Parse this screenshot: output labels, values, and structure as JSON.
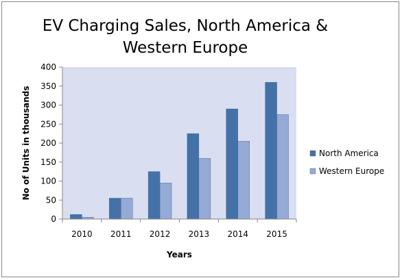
{
  "chart_data": {
    "type": "bar",
    "title": "EV Charging Sales, North America & Western Europe",
    "xlabel": "Years",
    "ylabel": "No of Units in thousands",
    "categories": [
      "2010",
      "2011",
      "2012",
      "2013",
      "2014",
      "2015"
    ],
    "series": [
      {
        "name": "North America",
        "values": [
          12,
          55,
          125,
          225,
          290,
          360
        ],
        "color": "#4472a8"
      },
      {
        "name": "Western Europe",
        "values": [
          5,
          55,
          95,
          160,
          205,
          275
        ],
        "color": "#96aad6"
      }
    ],
    "ylim": [
      0,
      400
    ],
    "yticks": [
      "0",
      "50",
      "100",
      "150",
      "200",
      "250",
      "300",
      "350",
      "400"
    ],
    "grid": false,
    "legend": "right",
    "plot_background": "#d9dff0"
  }
}
